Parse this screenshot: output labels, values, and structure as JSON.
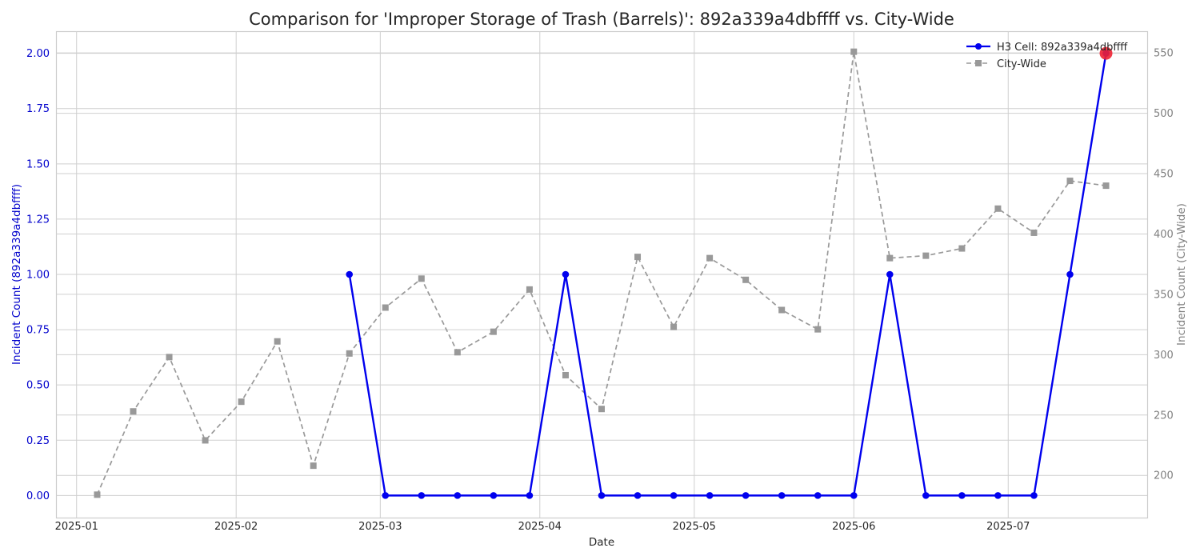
{
  "chart_data": {
    "type": "line",
    "title": "Comparison for 'Improper Storage of Trash (Barrels)': 892a339a4dbffff vs. City-Wide",
    "xlabel": "Date",
    "ylabel_left": "Incident Count (892a339a4dbffff)",
    "ylabel_right": "Incident Count (City-Wide)",
    "x_ticks": [
      "2025-01",
      "2025-02",
      "2025-03",
      "2025-04",
      "2025-05",
      "2025-06",
      "2025-07"
    ],
    "ylim_left": [
      -0.1,
      2.1
    ],
    "yticks_left": [
      "0.00",
      "0.25",
      "0.50",
      "0.75",
      "1.00",
      "1.25",
      "1.50",
      "1.75",
      "2.00"
    ],
    "ylim_right": [
      165,
      568
    ],
    "yticks_right": [
      "200",
      "250",
      "300",
      "350",
      "400",
      "450",
      "500",
      "550"
    ],
    "grid": true,
    "legend_position": "top-right",
    "colors": {
      "cell": "#0000ee",
      "city": "#999999",
      "highlight": "#ee2233",
      "left_axis": "#0000cc",
      "right_axis": "#808080"
    },
    "series": [
      {
        "name": "H3 Cell: 892a339a4dbffff",
        "axis": "left",
        "x": [
          "2025-02-23",
          "2025-03-02",
          "2025-03-09",
          "2025-03-16",
          "2025-03-23",
          "2025-03-30",
          "2025-04-06",
          "2025-04-13",
          "2025-04-20",
          "2025-04-27",
          "2025-05-04",
          "2025-05-11",
          "2025-05-18",
          "2025-05-25",
          "2025-06-01",
          "2025-06-08",
          "2025-06-15",
          "2025-06-22",
          "2025-06-29",
          "2025-07-06",
          "2025-07-13",
          "2025-07-20"
        ],
        "values": [
          1,
          0,
          0,
          0,
          0,
          0,
          1,
          0,
          0,
          0,
          0,
          0,
          0,
          0,
          0,
          1,
          0,
          0,
          0,
          0,
          1,
          2
        ]
      },
      {
        "name": "City-Wide",
        "axis": "right",
        "x": [
          "2025-01-05",
          "2025-01-12",
          "2025-01-19",
          "2025-01-26",
          "2025-02-02",
          "2025-02-09",
          "2025-02-16",
          "2025-02-23",
          "2025-03-02",
          "2025-03-09",
          "2025-03-16",
          "2025-03-23",
          "2025-03-30",
          "2025-04-06",
          "2025-04-13",
          "2025-04-20",
          "2025-04-27",
          "2025-05-04",
          "2025-05-11",
          "2025-05-18",
          "2025-05-25",
          "2025-06-01",
          "2025-06-08",
          "2025-06-15",
          "2025-06-22",
          "2025-06-29",
          "2025-07-06",
          "2025-07-13",
          "2025-07-20"
        ],
        "values": [
          184,
          253,
          298,
          229,
          261,
          311,
          208,
          301,
          339,
          363,
          302,
          319,
          354,
          283,
          255,
          381,
          323,
          380,
          362,
          337,
          321,
          551,
          380,
          382,
          388,
          421,
          401,
          444,
          440
        ]
      }
    ],
    "highlight_point": {
      "series": "H3 Cell: 892a339a4dbffff",
      "x": "2025-07-20",
      "value": 2
    }
  }
}
